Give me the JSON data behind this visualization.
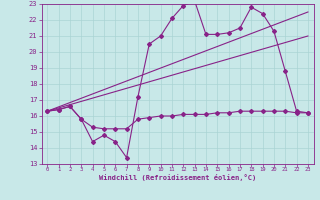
{
  "x_values": [
    0,
    1,
    2,
    3,
    4,
    5,
    6,
    7,
    8,
    9,
    10,
    11,
    12,
    13,
    14,
    15,
    16,
    17,
    18,
    19,
    20,
    21,
    22,
    23
  ],
  "line1": [
    16.3,
    16.4,
    16.6,
    15.8,
    14.4,
    14.8,
    14.4,
    13.4,
    17.2,
    20.5,
    21.0,
    22.1,
    22.9,
    23.2,
    21.1,
    21.1,
    21.2,
    21.5,
    22.8,
    22.4,
    21.3,
    18.8,
    16.3,
    16.2
  ],
  "line2": [
    16.3,
    16.4,
    16.6,
    15.8,
    15.3,
    15.2,
    15.2,
    15.2,
    15.8,
    15.9,
    16.0,
    16.0,
    16.1,
    16.1,
    16.1,
    16.2,
    16.2,
    16.3,
    16.3,
    16.3,
    16.3,
    16.3,
    16.2,
    16.2
  ],
  "trend1_x": [
    0,
    23
  ],
  "trend1_y": [
    16.3,
    21.0
  ],
  "trend2_x": [
    0,
    23
  ],
  "trend2_y": [
    16.3,
    22.5
  ],
  "ylim": [
    13,
    23
  ],
  "xlim": [
    -0.5,
    23.5
  ],
  "yticks": [
    13,
    14,
    15,
    16,
    17,
    18,
    19,
    20,
    21,
    22,
    23
  ],
  "xticks": [
    0,
    1,
    2,
    3,
    4,
    5,
    6,
    7,
    8,
    9,
    10,
    11,
    12,
    13,
    14,
    15,
    16,
    17,
    18,
    19,
    20,
    21,
    22,
    23
  ],
  "xlabel": "Windchill (Refroidissement éolien,°C)",
  "line_color": "#882288",
  "bg_color": "#c8e8e8",
  "grid_color": "#aad4d4",
  "marker": "D",
  "marker_size": 2.0,
  "linewidth": 0.8
}
